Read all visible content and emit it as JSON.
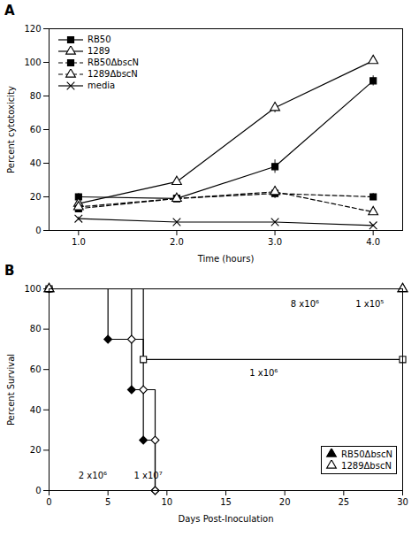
{
  "chart_data": [
    {
      "type": "line",
      "title": "A",
      "xlabel": "Time (hours)",
      "ylabel": "Percent cytotoxicity",
      "xlim": [
        0.7,
        4.3
      ],
      "xticks": [
        1,
        2,
        3,
        4
      ],
      "ylim": [
        0,
        120
      ],
      "yticks": [
        0,
        20,
        40,
        60,
        80,
        100,
        120
      ],
      "legend": "upper left",
      "series": [
        {
          "name": "RB50",
          "x": [
            1,
            2,
            3,
            4
          ],
          "values": [
            20,
            19,
            38,
            89
          ],
          "yerr": [
            2,
            2,
            4,
            3
          ],
          "color": "black",
          "marker": "square",
          "line_style": "solid"
        },
        {
          "name": "1289",
          "x": [
            1,
            2,
            3,
            4
          ],
          "values": [
            16,
            29,
            73,
            101
          ],
          "yerr": [
            2,
            2,
            3,
            1
          ],
          "color": "black",
          "marker": "triangle-open",
          "line_style": "solid"
        },
        {
          "name": "RB50ΔbscN",
          "x": [
            1,
            2,
            3,
            4
          ],
          "values": [
            13,
            19,
            22,
            20
          ],
          "yerr": [
            1.5,
            2,
            3,
            2
          ],
          "color": "black",
          "marker": "square",
          "line_style": "dashed"
        },
        {
          "name": "1289ΔbscN",
          "x": [
            1,
            2,
            3,
            4
          ],
          "values": [
            14,
            19,
            23,
            11
          ],
          "yerr": [
            2,
            2,
            3,
            2
          ],
          "color": "black",
          "marker": "triangle-open",
          "line_style": "dashed"
        },
        {
          "name": "media",
          "x": [
            1,
            2,
            3,
            4
          ],
          "values": [
            7,
            5,
            5,
            3
          ],
          "yerr": [
            1,
            0.5,
            0.5,
            0.5
          ],
          "color": "black",
          "marker": "x",
          "line_style": "solid"
        }
      ]
    },
    {
      "type": "step",
      "title": "B",
      "xlabel": "Days Post-Inoculation",
      "ylabel": "Percent Survival",
      "xlim": [
        0,
        30
      ],
      "xticks": [
        0,
        5,
        10,
        15,
        20,
        25,
        30
      ],
      "ylim": [
        0,
        100
      ],
      "yticks": [
        0,
        20,
        40,
        60,
        80,
        100
      ],
      "legend": "lower right",
      "series": [
        {
          "x": [
            0,
            5,
            7,
            8,
            9
          ],
          "values": [
            100,
            75,
            50,
            25,
            0
          ],
          "color": "black",
          "marker": "diamond",
          "line_style": "solid"
        },
        {
          "x": [
            0,
            7,
            8,
            9,
            9
          ],
          "values": [
            100,
            75,
            50,
            25,
            0
          ],
          "color": "black",
          "marker": "diamond-open",
          "line_style": "solid"
        },
        {
          "x": [
            0,
            8,
            30
          ],
          "values": [
            100,
            65,
            65
          ],
          "color": "black",
          "marker": "square-open",
          "line_style": "solid"
        },
        {
          "name": "RB50ΔbscN",
          "x": [
            0,
            30
          ],
          "values": [
            100,
            100
          ],
          "color": "black",
          "marker": "triangle",
          "line_style": "solid"
        },
        {
          "name": "1289ΔbscN",
          "x": [
            0,
            30
          ],
          "values": [
            100,
            100
          ],
          "color": "black",
          "marker": "triangle-open",
          "line_style": "solid"
        }
      ],
      "annotations": [
        {
          "text": "2 x10⁶",
          "x": 2.5,
          "y": 6
        },
        {
          "text": "1 x10⁷",
          "x": 7.2,
          "y": 6
        },
        {
          "text": "1 x10⁶",
          "x": 17,
          "y": 57
        },
        {
          "text": "8 x10⁶",
          "x": 20.5,
          "y": 91
        },
        {
          "text": "1 x10⁵",
          "x": 26.0,
          "y": 91
        }
      ]
    }
  ]
}
